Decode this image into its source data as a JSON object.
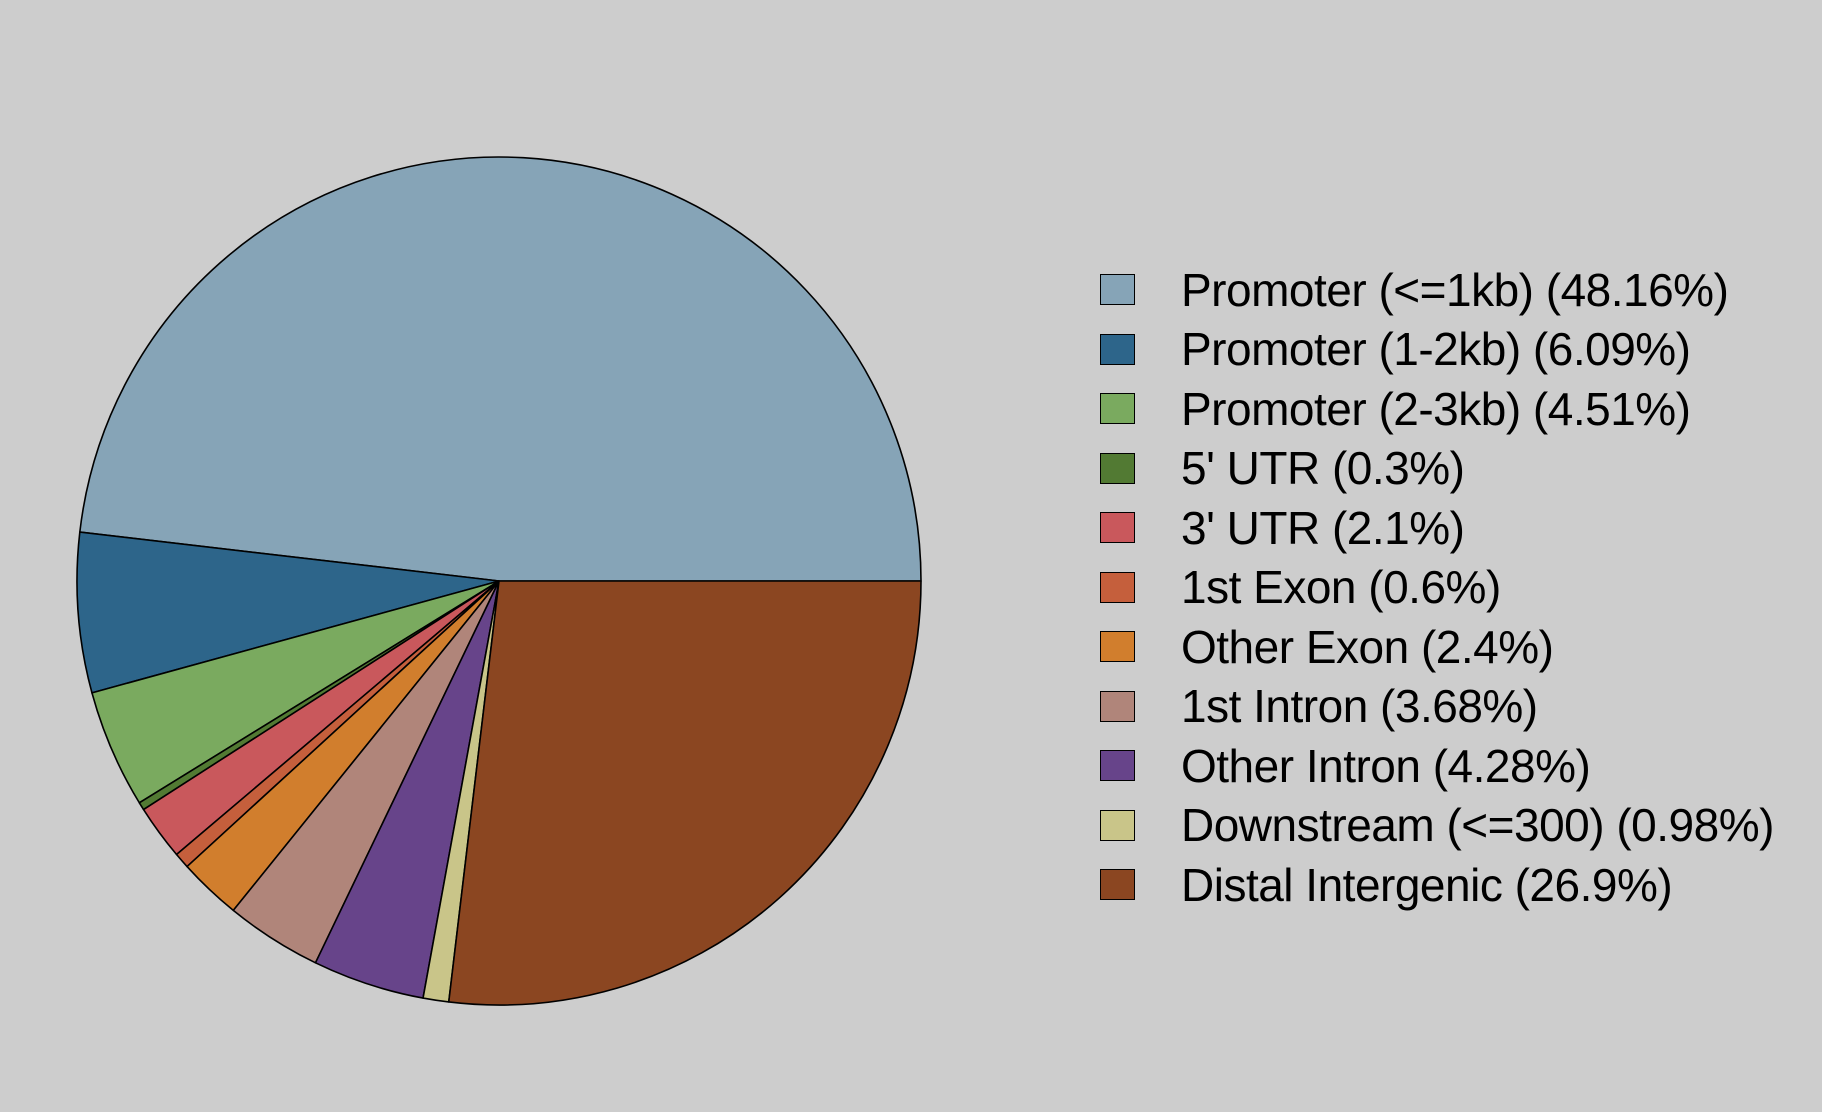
{
  "chart_data": {
    "type": "pie",
    "title": "",
    "start_angle_deg": 0,
    "direction": "counterclockwise",
    "legend_position": "right",
    "slices": [
      {
        "label": "Promoter (<=1kb)",
        "legend": "Promoter (<=1kb) (48.16%)",
        "value": 48.16,
        "color": "#86a4b7"
      },
      {
        "label": "Promoter (1-2kb)",
        "legend": "Promoter (1-2kb) (6.09%)",
        "value": 6.09,
        "color": "#2d658a"
      },
      {
        "label": "Promoter (2-3kb)",
        "legend": "Promoter (2-3kb) (4.51%)",
        "value": 4.51,
        "color": "#7aaa5f"
      },
      {
        "label": "5' UTR",
        "legend": "5' UTR (0.3%)",
        "value": 0.3,
        "color": "#527a33"
      },
      {
        "label": "3' UTR",
        "legend": "3' UTR (2.1%)",
        "value": 2.1,
        "color": "#c9585c"
      },
      {
        "label": "1st Exon",
        "legend": "1st Exon (0.6%)",
        "value": 0.6,
        "color": "#c55f3c"
      },
      {
        "label": "Other Exon",
        "legend": "Other Exon (2.4%)",
        "value": 2.4,
        "color": "#d17e2d"
      },
      {
        "label": "1st Intron",
        "legend": "1st Intron (3.68%)",
        "value": 3.68,
        "color": "#b0857a"
      },
      {
        "label": "Other Intron",
        "legend": "Other Intron (4.28%)",
        "value": 4.28,
        "color": "#67448a"
      },
      {
        "label": "Downstream (<=300)",
        "legend": "Downstream (<=300) (0.98%)",
        "value": 0.98,
        "color": "#c9c589"
      },
      {
        "label": "Distal Intergenic",
        "legend": "Distal Intergenic (26.9%)",
        "value": 26.9,
        "color": "#8b4621"
      }
    ]
  }
}
